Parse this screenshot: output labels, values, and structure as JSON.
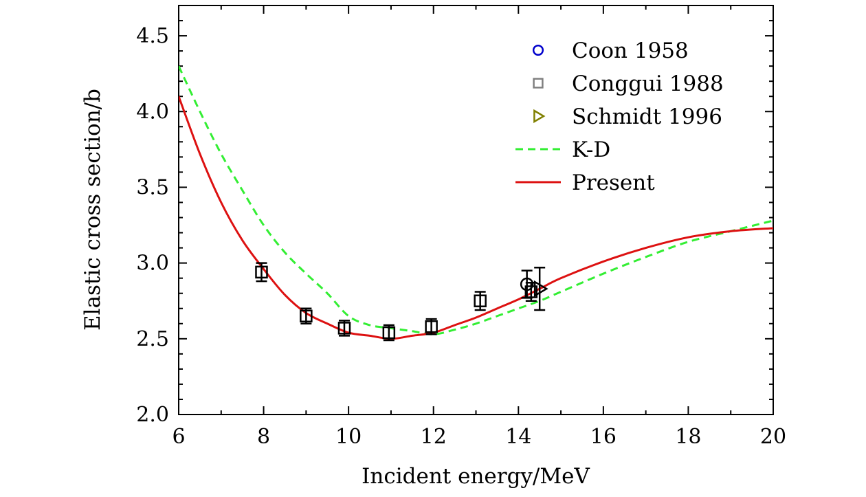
{
  "chart_data": {
    "type": "line",
    "title": "",
    "xlabel": "Incident energy/MeV",
    "ylabel": "Elastic cross section/b",
    "xlim": [
      6,
      20
    ],
    "ylim": [
      2.0,
      4.7
    ],
    "xticks": [
      6,
      8,
      10,
      12,
      14,
      16,
      18,
      20
    ],
    "yticks": [
      2.0,
      2.5,
      3.0,
      3.5,
      4.0,
      4.5
    ],
    "ytick_labels": [
      "2.0",
      "2.5",
      "3.0",
      "3.5",
      "4.0",
      "4.5"
    ],
    "grid": false,
    "legend_position": "top-right",
    "series": [
      {
        "name": "Coon 1958",
        "kind": "scatter",
        "marker": "circle",
        "legend_color": "#0000cc",
        "color": "#000000",
        "points": [
          {
            "x": 14.2,
            "y": 2.86,
            "err": 0.09
          }
        ]
      },
      {
        "name": "Conggui 1988",
        "kind": "scatter",
        "marker": "square",
        "legend_color": "#808080",
        "color": "#000000",
        "points": [
          {
            "x": 7.95,
            "y": 2.94,
            "err": 0.06
          },
          {
            "x": 9.0,
            "y": 2.65,
            "err": 0.05
          },
          {
            "x": 9.9,
            "y": 2.57,
            "err": 0.05
          },
          {
            "x": 10.95,
            "y": 2.54,
            "err": 0.05
          },
          {
            "x": 11.95,
            "y": 2.58,
            "err": 0.05
          },
          {
            "x": 13.1,
            "y": 2.75,
            "err": 0.06
          },
          {
            "x": 14.3,
            "y": 2.81,
            "err": 0.06
          }
        ]
      },
      {
        "name": "Schmidt 1996",
        "kind": "scatter",
        "marker": "triangle-right",
        "legend_color": "#808000",
        "color": "#000000",
        "points": [
          {
            "x": 14.5,
            "y": 2.83,
            "err": 0.14
          }
        ]
      },
      {
        "name": "K-D",
        "kind": "line",
        "dash": "dashed",
        "color": "#33ee33",
        "x": [
          6.0,
          6.5,
          7.0,
          7.5,
          8.0,
          8.5,
          9.0,
          9.5,
          10.0,
          10.5,
          11.0,
          11.5,
          12.0,
          12.5,
          13.0,
          13.5,
          14.0,
          14.5,
          15.0,
          16.0,
          17.0,
          18.0,
          19.0,
          20.0
        ],
        "y": [
          4.3,
          4.0,
          3.72,
          3.48,
          3.25,
          3.07,
          2.93,
          2.8,
          2.65,
          2.59,
          2.57,
          2.55,
          2.53,
          2.56,
          2.6,
          2.65,
          2.7,
          2.75,
          2.81,
          2.93,
          3.04,
          3.14,
          3.21,
          3.28
        ]
      },
      {
        "name": "Present",
        "kind": "line",
        "dash": "solid",
        "color": "#dd1111",
        "x": [
          6.0,
          6.5,
          7.0,
          7.5,
          8.0,
          8.5,
          9.0,
          9.5,
          10.0,
          10.5,
          11.0,
          11.5,
          12.0,
          12.5,
          13.0,
          13.5,
          14.0,
          14.5,
          15.0,
          16.0,
          17.0,
          18.0,
          19.0,
          20.0
        ],
        "y": [
          4.1,
          3.72,
          3.4,
          3.15,
          2.96,
          2.79,
          2.67,
          2.6,
          2.54,
          2.52,
          2.5,
          2.52,
          2.54,
          2.59,
          2.64,
          2.7,
          2.76,
          2.83,
          2.9,
          3.01,
          3.1,
          3.17,
          3.21,
          3.23
        ]
      }
    ]
  }
}
